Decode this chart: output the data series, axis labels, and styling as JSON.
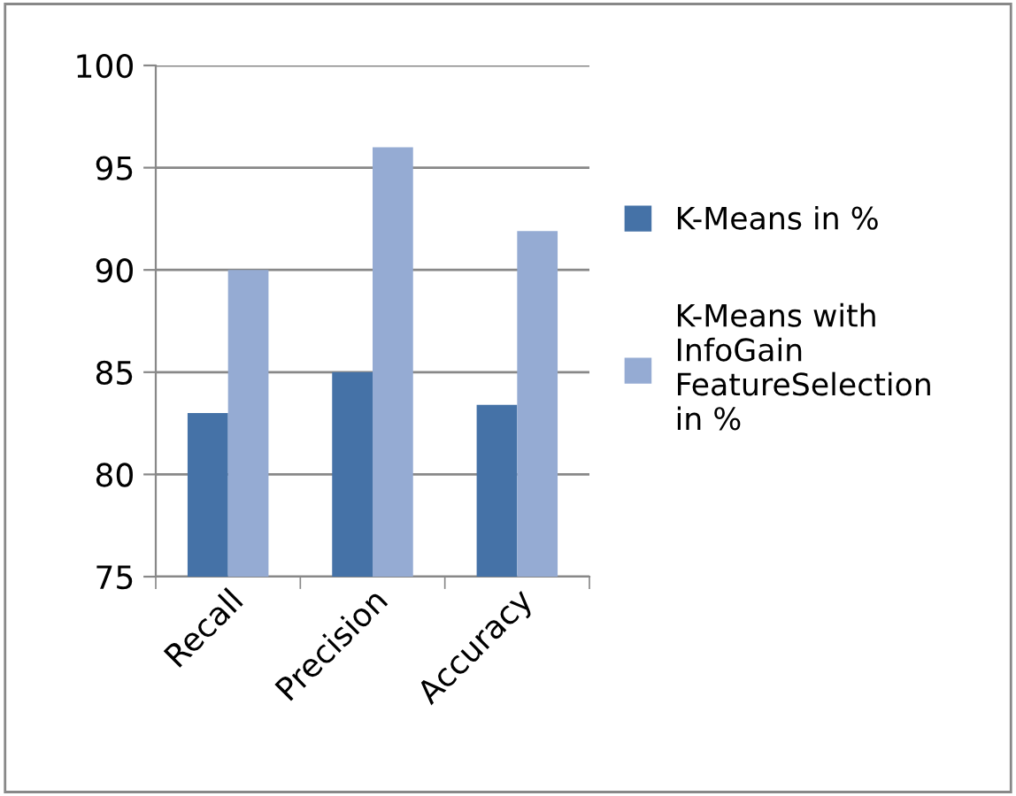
{
  "chart_data": {
    "type": "bar",
    "categories": [
      "Recall",
      "Precision",
      "Accuracy"
    ],
    "series": [
      {
        "name": "K-Means in %",
        "color": "#4572a7",
        "values": [
          83,
          85,
          83.4
        ]
      },
      {
        "name": "K-Means with InfoGain FeatureSelection in %",
        "color": "#95abd3",
        "values": [
          90,
          96,
          91.9
        ]
      }
    ],
    "ylim": [
      75,
      100
    ],
    "yticks": [
      75,
      80,
      85,
      90,
      95,
      100
    ],
    "grid": "y",
    "legend": "right"
  }
}
